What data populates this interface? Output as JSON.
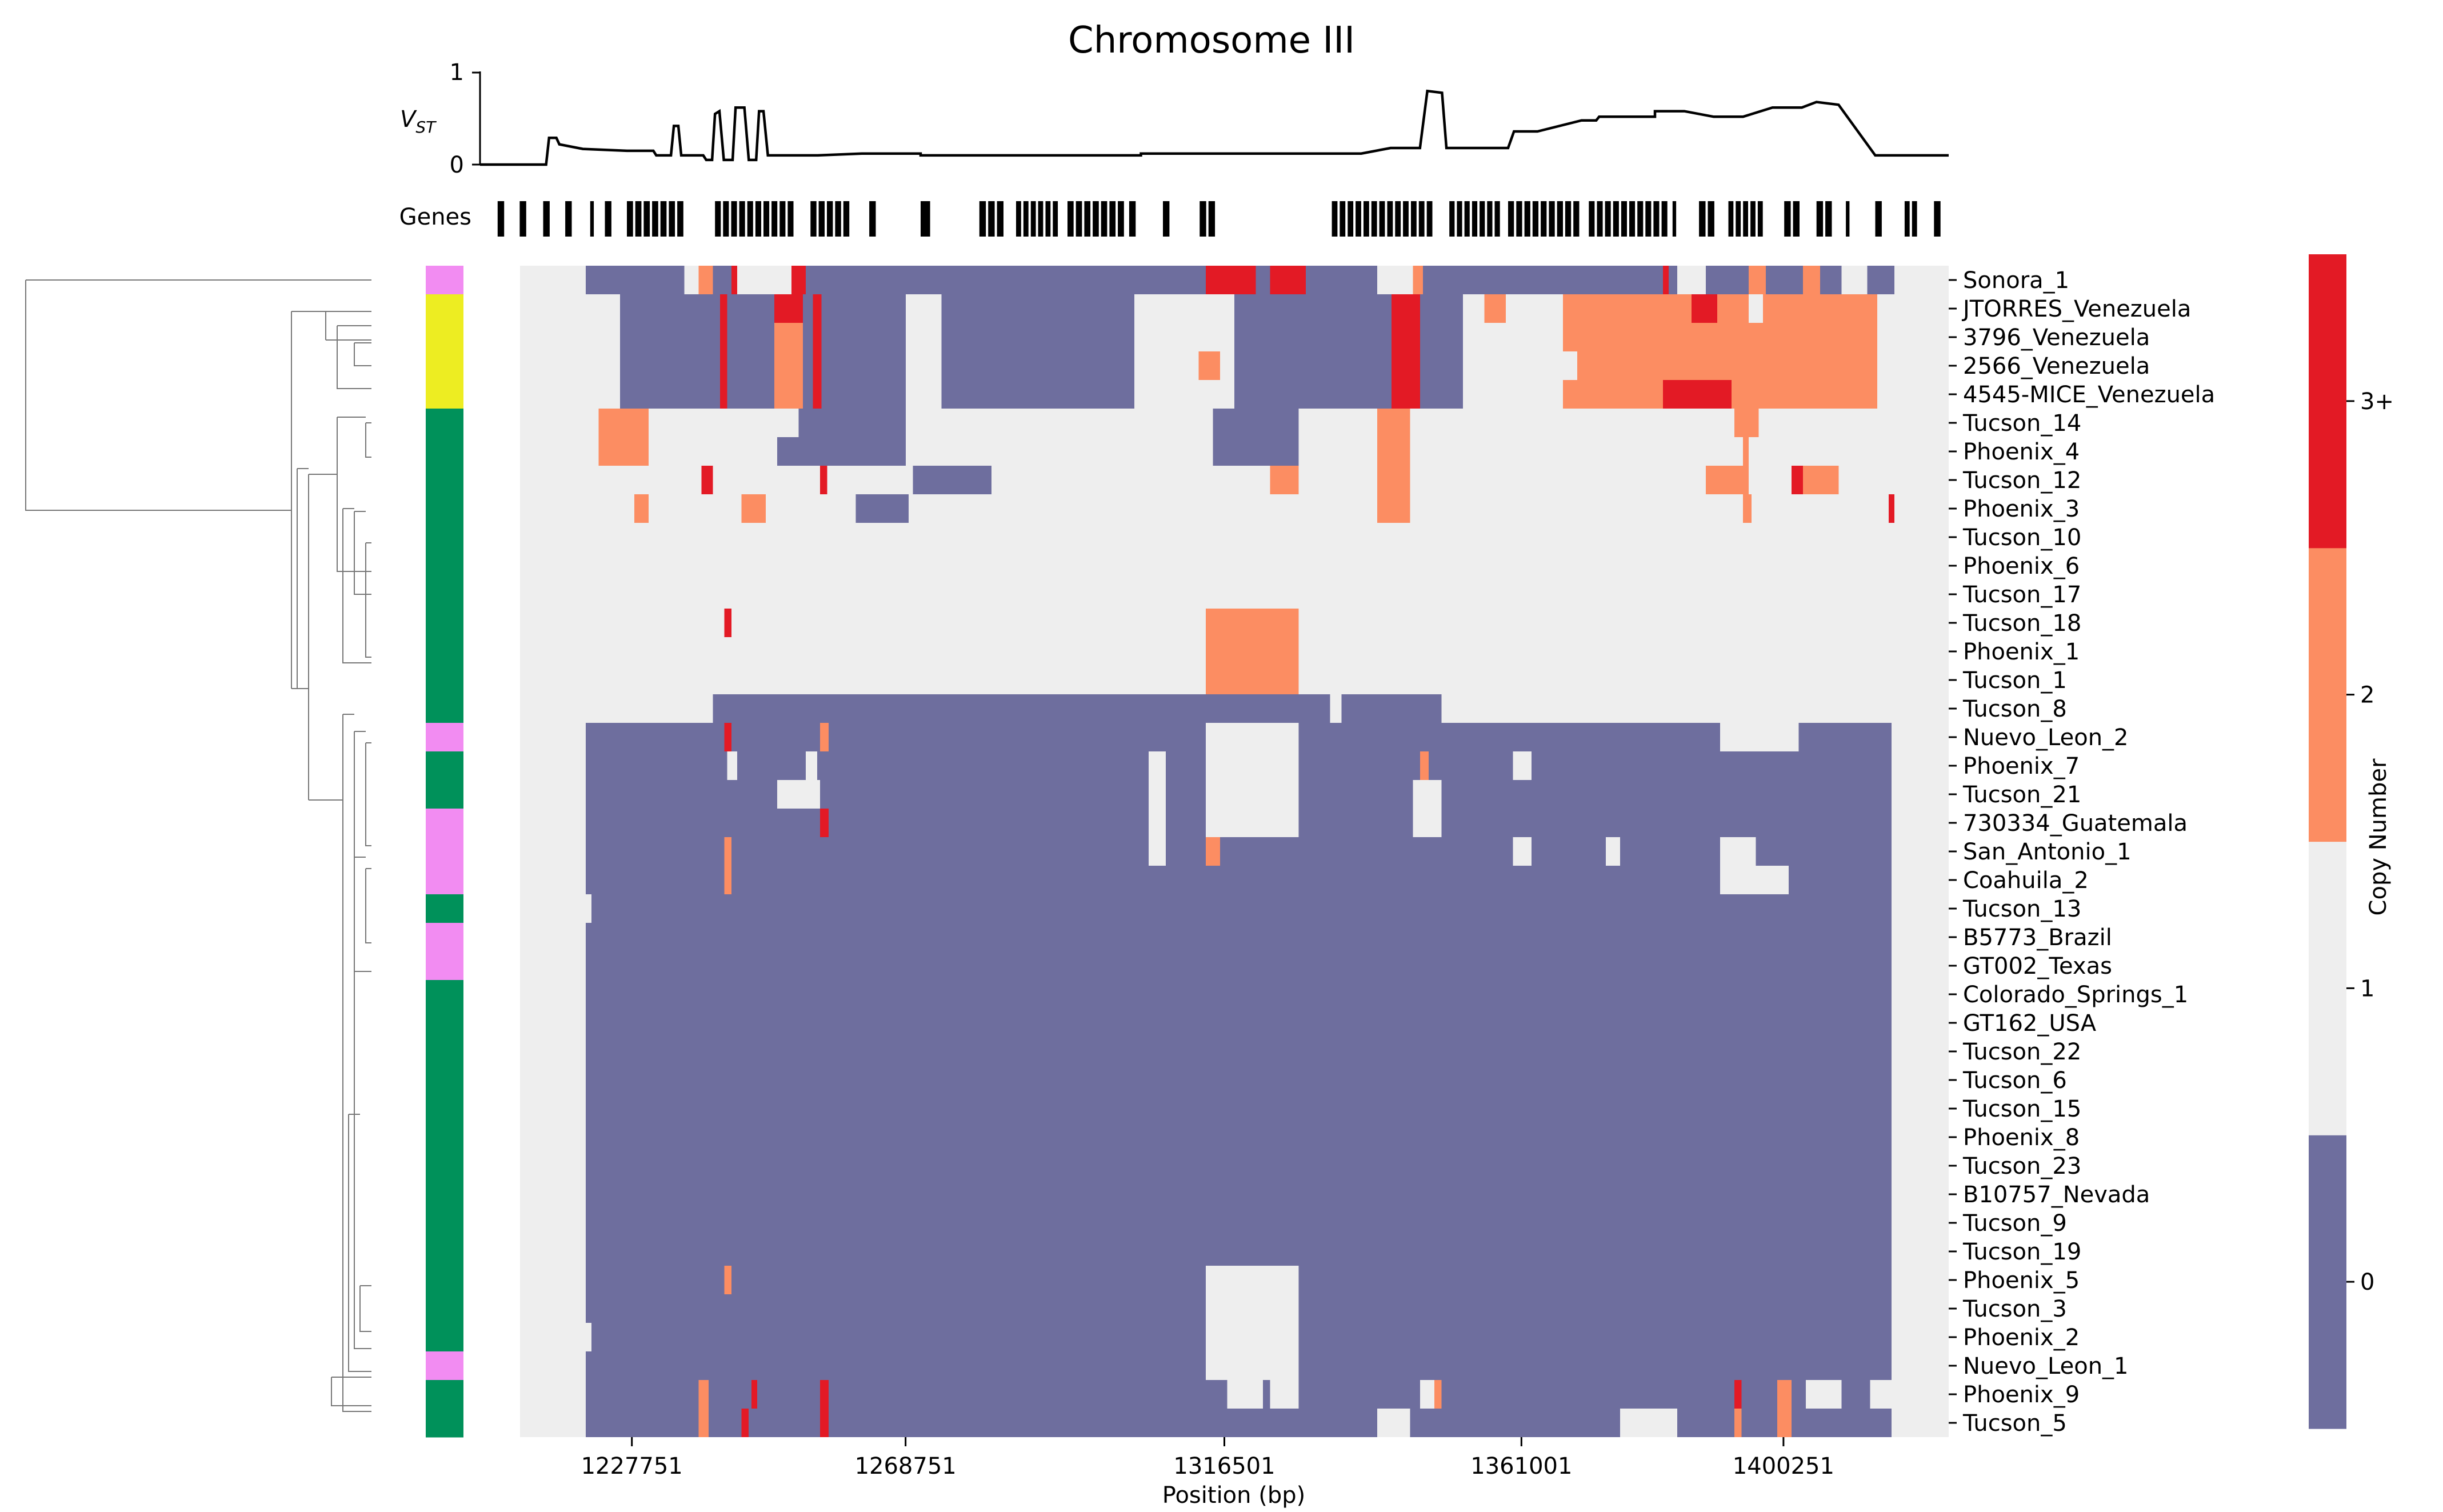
{
  "chart_data": {
    "type": "heatmap",
    "title": "Chromosome III",
    "xlabel": "Position (bp)",
    "x_ticks": [
      "1227751",
      "1268751",
      "1316501",
      "1361001",
      "1400251"
    ],
    "x_range": [
      1211000,
      1425000
    ],
    "vst": {
      "label_main": "V",
      "label_sub": "ST",
      "y_ticks": [
        "0",
        "1"
      ],
      "ylim": [
        0,
        1
      ],
      "points": [
        [
          0,
          0.0
        ],
        [
          0.045,
          0.0
        ],
        [
          0.047,
          0.29
        ],
        [
          0.052,
          0.29
        ],
        [
          0.054,
          0.22
        ],
        [
          0.07,
          0.17
        ],
        [
          0.1,
          0.15
        ],
        [
          0.118,
          0.15
        ],
        [
          0.12,
          0.1
        ],
        [
          0.13,
          0.1
        ],
        [
          0.132,
          0.42
        ],
        [
          0.135,
          0.42
        ],
        [
          0.137,
          0.1
        ],
        [
          0.152,
          0.1
        ],
        [
          0.154,
          0.05
        ],
        [
          0.158,
          0.05
        ],
        [
          0.16,
          0.55
        ],
        [
          0.163,
          0.58
        ],
        [
          0.166,
          0.05
        ],
        [
          0.172,
          0.05
        ],
        [
          0.174,
          0.62
        ],
        [
          0.18,
          0.62
        ],
        [
          0.183,
          0.05
        ],
        [
          0.188,
          0.05
        ],
        [
          0.19,
          0.58
        ],
        [
          0.193,
          0.58
        ],
        [
          0.196,
          0.1
        ],
        [
          0.23,
          0.1
        ],
        [
          0.26,
          0.12
        ],
        [
          0.3,
          0.12
        ],
        [
          0.3,
          0.1
        ],
        [
          0.45,
          0.1
        ],
        [
          0.45,
          0.12
        ],
        [
          0.6,
          0.12
        ],
        [
          0.62,
          0.18
        ],
        [
          0.64,
          0.18
        ],
        [
          0.645,
          0.8
        ],
        [
          0.655,
          0.78
        ],
        [
          0.658,
          0.18
        ],
        [
          0.7,
          0.18
        ],
        [
          0.704,
          0.36
        ],
        [
          0.72,
          0.36
        ],
        [
          0.75,
          0.48
        ],
        [
          0.76,
          0.48
        ],
        [
          0.762,
          0.52
        ],
        [
          0.8,
          0.52
        ],
        [
          0.8,
          0.58
        ],
        [
          0.82,
          0.58
        ],
        [
          0.84,
          0.52
        ],
        [
          0.86,
          0.52
        ],
        [
          0.88,
          0.62
        ],
        [
          0.9,
          0.62
        ],
        [
          0.91,
          0.68
        ],
        [
          0.925,
          0.65
        ],
        [
          0.95,
          0.1
        ],
        [
          1,
          0.1
        ]
      ]
    },
    "genes_label": "Genes",
    "gene_blocks": [
      [
        0.012,
        0.006
      ],
      [
        0.027,
        0.006
      ],
      [
        0.043,
        0.006
      ],
      [
        0.058,
        0.006
      ],
      [
        0.075,
        0.004
      ],
      [
        0.085,
        0.006
      ],
      [
        0.1,
        0.04
      ],
      [
        0.16,
        0.055
      ],
      [
        0.225,
        0.028
      ],
      [
        0.265,
        0.006
      ],
      [
        0.3,
        0.008
      ],
      [
        0.34,
        0.018
      ],
      [
        0.365,
        0.03
      ],
      [
        0.4,
        0.04
      ],
      [
        0.442,
        0.006
      ],
      [
        0.465,
        0.006
      ],
      [
        0.49,
        0.012
      ],
      [
        0.58,
        0.07
      ],
      [
        0.66,
        0.036
      ],
      [
        0.7,
        0.05
      ],
      [
        0.755,
        0.055
      ],
      [
        0.812,
        0.004
      ],
      [
        0.83,
        0.012
      ],
      [
        0.85,
        0.025
      ],
      [
        0.888,
        0.012
      ],
      [
        0.91,
        0.012
      ],
      [
        0.93,
        0.004
      ],
      [
        0.95,
        0.006
      ],
      [
        0.97,
        0.01
      ],
      [
        0.99,
        0.006
      ]
    ],
    "samples": [
      "Sonora_1",
      "JTORRES_Venezuela",
      "3796_Venezuela",
      "2566_Venezuela",
      "4545-MICE_Venezuela",
      "Tucson_14",
      "Phoenix_4",
      "Tucson_12",
      "Phoenix_3",
      "Tucson_10",
      "Phoenix_6",
      "Tucson_17",
      "Tucson_18",
      "Phoenix_1",
      "Tucson_1",
      "Tucson_8",
      "Nuevo_Leon_2",
      "Phoenix_7",
      "Tucson_21",
      "730334_Guatemala",
      "San_Antonio_1",
      "Coahuila_2",
      "Tucson_13",
      "B5773_Brazil",
      "GT002_Texas",
      "Colorado_Springs_1",
      "GT162_USA",
      "Tucson_22",
      "Tucson_6",
      "Tucson_15",
      "Phoenix_8",
      "Tucson_23",
      "B10757_Nevada",
      "Tucson_9",
      "Tucson_19",
      "Phoenix_5",
      "Tucson_3",
      "Phoenix_2",
      "Nuevo_Leon_1",
      "Phoenix_9",
      "Tucson_5"
    ],
    "groups": [
      "pink",
      "yellow",
      "yellow",
      "yellow",
      "yellow",
      "green",
      "green",
      "green",
      "green",
      "green",
      "green",
      "green",
      "green",
      "green",
      "green",
      "green",
      "pink",
      "green",
      "green",
      "pink",
      "pink",
      "pink",
      "green",
      "pink",
      "pink",
      "green",
      "green",
      "green",
      "green",
      "green",
      "green",
      "green",
      "green",
      "green",
      "green",
      "green",
      "green",
      "green",
      "pink",
      "green",
      "green"
    ],
    "group_colors": {
      "pink": "#f28cf2",
      "yellow": "#eded22",
      "green": "#00915a"
    },
    "colorbar": {
      "label": "Copy Number",
      "ticks": [
        "0",
        "1",
        "2",
        "3+"
      ],
      "colors": [
        "#6e6e9e",
        "#eeeeee",
        "#fc8d62",
        "#e31a25"
      ]
    },
    "cells_default_background": 1,
    "cell_segments": [
      [
        0,
        0.046,
        0.115,
        0
      ],
      [
        0.125,
        0.135,
        2
      ],
      [
        0.135,
        0.148,
        0
      ],
      [
        0.148,
        0.152,
        3
      ],
      [
        0.19,
        0.2,
        3
      ],
      [
        0.2,
        0.48,
        0
      ],
      [
        0.48,
        0.515,
        3
      ],
      [
        0.515,
        0.525,
        0
      ],
      [
        0.525,
        0.55,
        3
      ],
      [
        0.55,
        0.6,
        0
      ],
      [
        0.625,
        0.632,
        2
      ],
      [
        0.632,
        0.8,
        0
      ],
      [
        0.8,
        0.804,
        3
      ],
      [
        0.804,
        0.81,
        0
      ],
      [
        0.83,
        0.86,
        0
      ],
      [
        0.86,
        0.872,
        2
      ],
      [
        0.872,
        0.898,
        0
      ],
      [
        0.898,
        0.91,
        2
      ],
      [
        0.91,
        0.925,
        0
      ],
      [
        0.943,
        0.962,
        0
      ],
      [
        1,
        0.07,
        0.14,
        0
      ],
      [
        0.14,
        0.145,
        3
      ],
      [
        0.145,
        0.178,
        0
      ],
      [
        0.178,
        0.198,
        3
      ],
      [
        0.198,
        0.205,
        0
      ],
      [
        0.205,
        0.211,
        3
      ],
      [
        0.211,
        0.27,
        0
      ],
      [
        0.295,
        0.43,
        0
      ],
      [
        0.5,
        0.61,
        0
      ],
      [
        0.61,
        0.63,
        3
      ],
      [
        0.63,
        0.66,
        0
      ],
      [
        0.675,
        0.69,
        2
      ],
      [
        0.73,
        0.82,
        2
      ],
      [
        0.82,
        0.838,
        3
      ],
      [
        0.838,
        0.86,
        2
      ],
      [
        0.87,
        0.95,
        2
      ],
      [
        2,
        0.07,
        0.14,
        0
      ],
      [
        0.14,
        0.145,
        3
      ],
      [
        0.145,
        0.178,
        0
      ],
      [
        0.178,
        0.198,
        2
      ],
      [
        0.198,
        0.205,
        0
      ],
      [
        0.205,
        0.211,
        3
      ],
      [
        0.211,
        0.27,
        0
      ],
      [
        0.295,
        0.43,
        0
      ],
      [
        0.5,
        0.61,
        0
      ],
      [
        0.61,
        0.63,
        3
      ],
      [
        0.63,
        0.66,
        0
      ],
      [
        0.73,
        0.95,
        2
      ],
      [
        3,
        0.07,
        0.14,
        0
      ],
      [
        0.14,
        0.145,
        3
      ],
      [
        0.145,
        0.178,
        0
      ],
      [
        0.178,
        0.198,
        2
      ],
      [
        0.198,
        0.205,
        0
      ],
      [
        0.205,
        0.211,
        3
      ],
      [
        0.211,
        0.27,
        0
      ],
      [
        0.295,
        0.43,
        0
      ],
      [
        0.475,
        0.49,
        2
      ],
      [
        0.5,
        0.61,
        0
      ],
      [
        0.61,
        0.63,
        3
      ],
      [
        0.63,
        0.66,
        0
      ],
      [
        0.74,
        0.95,
        2
      ],
      [
        4,
        0.07,
        0.14,
        0
      ],
      [
        0.14,
        0.145,
        3
      ],
      [
        0.145,
        0.178,
        0
      ],
      [
        0.178,
        0.198,
        2
      ],
      [
        0.198,
        0.205,
        0
      ],
      [
        0.205,
        0.211,
        3
      ],
      [
        0.211,
        0.27,
        0
      ],
      [
        0.295,
        0.43,
        0
      ],
      [
        0.5,
        0.61,
        0
      ],
      [
        0.61,
        0.63,
        3
      ],
      [
        0.63,
        0.66,
        0
      ],
      [
        0.73,
        0.8,
        2
      ],
      [
        0.8,
        0.848,
        3
      ],
      [
        0.848,
        0.95,
        2
      ],
      [
        5,
        0.055,
        0.09,
        2
      ],
      [
        0.195,
        0.27,
        0
      ],
      [
        0.485,
        0.495,
        0
      ],
      [
        0.495,
        0.545,
        0
      ],
      [
        0.6,
        0.623,
        2
      ],
      [
        0.85,
        0.867,
        2
      ],
      [
        6,
        0.055,
        0.09,
        2
      ],
      [
        0.18,
        0.27,
        0
      ],
      [
        0.485,
        0.545,
        0
      ],
      [
        0.6,
        0.623,
        2
      ],
      [
        0.856,
        0.86,
        2
      ],
      [
        7,
        0.127,
        0.135,
        3
      ],
      [
        0.21,
        0.215,
        3
      ],
      [
        0.275,
        0.33,
        0
      ],
      [
        0.525,
        0.545,
        2
      ],
      [
        0.6,
        0.623,
        2
      ],
      [
        0.83,
        0.86,
        2
      ],
      [
        0.89,
        0.898,
        3
      ],
      [
        0.898,
        0.923,
        2
      ],
      [
        8,
        0.08,
        0.09,
        2
      ],
      [
        0.155,
        0.172,
        2
      ],
      [
        0.235,
        0.272,
        0
      ],
      [
        0.6,
        0.623,
        2
      ],
      [
        0.856,
        0.862,
        2
      ],
      [
        0.958,
        0.962,
        3
      ],
      [
        12,
        0.143,
        0.148,
        3
      ],
      [
        0.48,
        0.545,
        2
      ],
      [
        13,
        0.48,
        0.545,
        2
      ],
      [
        14,
        0.48,
        0.545,
        2
      ],
      [
        15,
        0.135,
        0.48,
        0
      ],
      [
        0.48,
        0.545,
        0
      ],
      [
        0.545,
        0.567,
        0
      ],
      [
        0.575,
        0.645,
        0
      ],
      [
        16,
        0.046,
        0.48,
        0
      ],
      [
        0.545,
        0.84,
        0
      ],
      [
        0.895,
        0.96,
        0
      ],
      [
        0.143,
        0.148,
        3
      ],
      [
        0.21,
        0.216,
        2
      ],
      [
        17,
        0.046,
        0.145,
        0
      ],
      [
        0.152,
        0.185,
        0
      ],
      [
        0.185,
        0.2,
        0
      ],
      [
        0.208,
        0.44,
        0
      ],
      [
        0.452,
        0.48,
        0
      ],
      [
        0.545,
        0.63,
        0
      ],
      [
        0.63,
        0.636,
        2
      ],
      [
        0.636,
        0.695,
        0
      ],
      [
        0.708,
        0.96,
        0
      ],
      [
        18,
        0.046,
        0.18,
        0
      ],
      [
        0.21,
        0.44,
        0
      ],
      [
        0.452,
        0.48,
        0
      ],
      [
        0.545,
        0.625,
        0
      ],
      [
        0.645,
        0.96,
        0
      ],
      [
        19,
        0.046,
        0.21,
        0
      ],
      [
        0.21,
        0.216,
        3
      ],
      [
        0.216,
        0.44,
        0
      ],
      [
        0.452,
        0.48,
        0
      ],
      [
        0.545,
        0.625,
        0
      ],
      [
        0.645,
        0.96,
        0
      ],
      [
        20,
        0.046,
        0.44,
        0
      ],
      [
        0.452,
        0.48,
        0
      ],
      [
        0.488,
        0.695,
        0
      ],
      [
        0.708,
        0.76,
        0
      ],
      [
        0.77,
        0.84,
        0
      ],
      [
        0.865,
        0.96,
        0
      ],
      [
        0.143,
        0.148,
        2
      ],
      [
        0.48,
        0.49,
        2
      ],
      [
        21,
        0.046,
        0.84,
        0
      ],
      [
        0.888,
        0.96,
        0
      ],
      [
        0.143,
        0.148,
        2
      ],
      [
        22,
        0.05,
        0.96,
        0
      ],
      [
        23,
        0.046,
        0.96,
        0
      ],
      [
        24,
        0.046,
        0.96,
        0
      ],
      [
        25,
        0.046,
        0.96,
        0
      ],
      [
        26,
        0.046,
        0.96,
        0
      ],
      [
        27,
        0.046,
        0.96,
        0
      ],
      [
        28,
        0.046,
        0.96,
        0
      ],
      [
        29,
        0.046,
        0.96,
        0
      ],
      [
        30,
        0.046,
        0.96,
        0
      ],
      [
        31,
        0.046,
        0.96,
        0
      ],
      [
        32,
        0.046,
        0.96,
        0
      ],
      [
        33,
        0.046,
        0.96,
        0
      ],
      [
        34,
        0.046,
        0.96,
        0
      ],
      [
        35,
        0.046,
        0.48,
        0
      ],
      [
        0.545,
        0.96,
        0
      ],
      [
        0.143,
        0.148,
        2
      ],
      [
        36,
        0.046,
        0.48,
        0
      ],
      [
        0.545,
        0.96,
        0
      ],
      [
        37,
        0.05,
        0.48,
        0
      ],
      [
        0.545,
        0.96,
        0
      ],
      [
        38,
        0.046,
        0.48,
        0
      ],
      [
        0.545,
        0.96,
        0
      ],
      [
        39,
        0.046,
        0.48,
        0
      ],
      [
        0.48,
        0.495,
        0
      ],
      [
        0.52,
        0.525,
        0
      ],
      [
        0.545,
        0.63,
        0
      ],
      [
        0.645,
        0.96,
        0
      ],
      [
        0.125,
        0.132,
        2
      ],
      [
        0.162,
        0.166,
        3
      ],
      [
        0.21,
        0.216,
        3
      ],
      [
        0.64,
        0.645,
        2
      ],
      [
        0.85,
        0.855,
        3
      ],
      [
        0.88,
        0.89,
        2
      ],
      [
        0.9,
        0.925,
        1
      ],
      [
        0.945,
        0.96,
        1
      ],
      [
        40,
        0.046,
        0.6,
        0
      ],
      [
        0.623,
        0.77,
        0
      ],
      [
        0.81,
        0.96,
        0
      ],
      [
        0.125,
        0.132,
        2
      ],
      [
        0.155,
        0.16,
        3
      ],
      [
        0.21,
        0.216,
        3
      ],
      [
        0.85,
        0.855,
        2
      ],
      [
        0.88,
        0.89,
        2
      ]
    ]
  }
}
